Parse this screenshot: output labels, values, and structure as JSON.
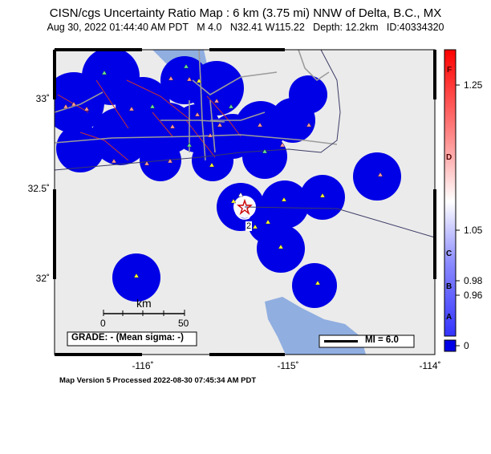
{
  "header": {
    "title": "CISN/cgs Uncertainty Ratio Map : 6 km (3.75 mi) NNW of Delta, B.C., MX",
    "subtitle": "Aug 30, 2022 01:44:40 AM PDT   M 4.0   N32.41 W115.22   Depth: 12.2km   ID:40334320"
  },
  "axes": {
    "lat_labels": [
      "33˚",
      "32.5˚",
      "32˚"
    ],
    "lon_labels": [
      "-116˚",
      "-115˚",
      "-114˚"
    ]
  },
  "scalebar": {
    "unit": "km",
    "left": "0",
    "right": "50"
  },
  "grade_box": "GRADE: - (Mean sigma: -)",
  "mi_box": "MI = 6.0",
  "contour_label": "2",
  "colorbar": {
    "letters": [
      "F",
      "D",
      "C",
      "B",
      "A"
    ],
    "ticks": [
      "1.25",
      "1.05",
      "0.98",
      "0.96",
      "0"
    ]
  },
  "footer": "Map Version 5 Processed 2022-08-30 07:45:34 AM PDT"
}
